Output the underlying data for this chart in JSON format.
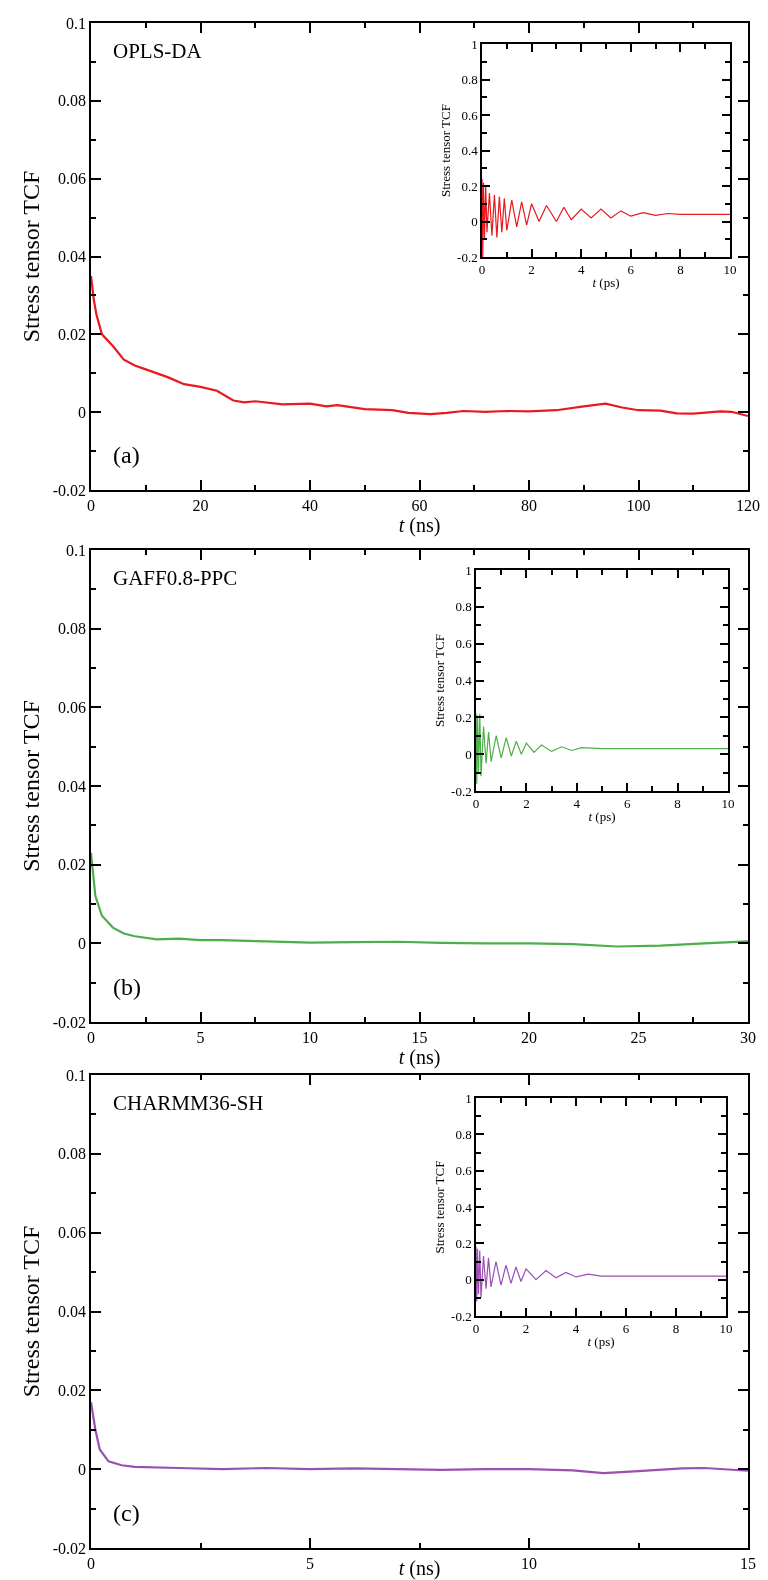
{
  "chart_data": [
    {
      "type": "line",
      "xlabel": "t (ns)",
      "ylabel": "Stress tensor TCF",
      "annotations": [
        "OPLS-DA",
        "(a)"
      ],
      "xlim": [
        0,
        120
      ],
      "xticks": [
        0,
        20,
        40,
        60,
        80,
        100,
        120
      ],
      "ylim": [
        -0.02,
        0.1
      ],
      "yticks": [
        -0.02,
        0,
        0.02,
        0.04,
        0.06,
        0.08,
        0.1
      ],
      "series": [
        {
          "color": "#e8191f",
          "x": [
            0,
            0.5,
            1,
            2,
            4,
            6,
            8,
            10,
            14,
            17,
            20,
            23,
            26,
            28,
            30,
            35,
            40,
            43,
            45,
            50,
            55,
            58,
            62,
            65,
            68,
            72,
            76,
            80,
            85,
            90,
            94,
            97,
            100,
            104,
            107,
            110,
            115,
            117,
            120
          ],
          "values": [
            0.035,
            0.029,
            0.025,
            0.02,
            0.017,
            0.0135,
            0.012,
            0.011,
            0.009,
            0.0072,
            0.0065,
            0.0055,
            0.003,
            0.0025,
            0.0028,
            0.002,
            0.0022,
            0.0015,
            0.0018,
            0.0008,
            0.0005,
            -0.0002,
            -0.0005,
            -0.0002,
            0.0003,
            0.0001,
            0.0003,
            0.0002,
            0.0005,
            0.0015,
            0.0022,
            0.0012,
            0.0005,
            0.0004,
            -0.0003,
            -0.0004,
            0.0002,
            0.0001,
            -0.001
          ]
        }
      ]
    },
    {
      "type": "line",
      "xlabel": "t (ps)",
      "ylabel": "Stress tensor TCF",
      "xlim": [
        0,
        10
      ],
      "xticks": [
        0,
        2,
        4,
        6,
        8,
        10
      ],
      "ylim": [
        -0.2,
        1
      ],
      "yticks": [
        -0.2,
        0,
        0.2,
        0.4,
        0.6,
        0.8,
        1
      ],
      "series": [
        {
          "color": "#e8191f",
          "x": [
            0,
            0.03,
            0.06,
            0.1,
            0.15,
            0.2,
            0.3,
            0.4,
            0.5,
            0.6,
            0.7,
            0.8,
            0.9,
            1.0,
            1.2,
            1.4,
            1.6,
            1.8,
            2.0,
            2.3,
            2.6,
            3.0,
            3.3,
            3.6,
            4.0,
            4.4,
            4.8,
            5.2,
            5.6,
            6.0,
            6.5,
            7.0,
            7.5,
            8.0,
            9.0,
            10.0
          ],
          "values": [
            0.24,
            -0.2,
            0.22,
            -0.1,
            0.2,
            -0.06,
            0.16,
            -0.08,
            0.15,
            -0.09,
            0.14,
            -0.06,
            0.13,
            -0.05,
            0.12,
            -0.03,
            0.11,
            -0.02,
            0.1,
            0.0,
            0.09,
            0.0,
            0.08,
            0.01,
            0.07,
            0.02,
            0.07,
            0.02,
            0.06,
            0.03,
            0.05,
            0.035,
            0.045,
            0.04,
            0.04,
            0.04
          ]
        }
      ]
    },
    {
      "type": "line",
      "xlabel": "t (ns)",
      "ylabel": "Stress tensor TCF",
      "annotations": [
        "GAFF0.8-PPC",
        "(b)"
      ],
      "xlim": [
        0,
        30
      ],
      "xticks": [
        0,
        5,
        10,
        15,
        20,
        25,
        30
      ],
      "ylim": [
        -0.02,
        0.1
      ],
      "yticks": [
        -0.02,
        0,
        0.02,
        0.04,
        0.06,
        0.08,
        0.1
      ],
      "series": [
        {
          "color": "#4daf4a",
          "x": [
            0,
            0.2,
            0.5,
            1,
            1.5,
            2,
            3,
            4,
            5,
            6,
            8,
            10,
            12,
            14,
            16,
            18,
            20,
            22,
            24,
            26,
            28,
            30
          ],
          "values": [
            0.023,
            0.012,
            0.007,
            0.004,
            0.0025,
            0.0018,
            0.001,
            0.0012,
            0.0008,
            0.0008,
            0.0005,
            0.0002,
            0.0003,
            0.0004,
            0.0001,
            0.0,
            0.0,
            -0.0002,
            -0.0008,
            -0.0006,
            0.0,
            0.0005
          ]
        }
      ]
    },
    {
      "type": "line",
      "xlabel": "t (ps)",
      "ylabel": "Stress tensor TCF",
      "xlim": [
        0,
        10
      ],
      "xticks": [
        0,
        2,
        4,
        6,
        8,
        10
      ],
      "ylim": [
        -0.2,
        1
      ],
      "yticks": [
        -0.2,
        0,
        0.2,
        0.4,
        0.6,
        0.8,
        1
      ],
      "series": [
        {
          "color": "#4daf4a",
          "x": [
            0,
            0.03,
            0.06,
            0.1,
            0.15,
            0.2,
            0.3,
            0.4,
            0.5,
            0.6,
            0.8,
            1.0,
            1.2,
            1.4,
            1.6,
            1.8,
            2.0,
            2.3,
            2.6,
            3.0,
            3.4,
            3.8,
            4.2,
            5.0,
            6.0,
            8.0,
            10.0
          ],
          "values": [
            0.22,
            -0.16,
            0.21,
            -0.1,
            0.22,
            -0.12,
            0.15,
            -0.05,
            0.12,
            -0.04,
            0.1,
            -0.02,
            0.09,
            -0.01,
            0.07,
            0.0,
            0.06,
            0.01,
            0.05,
            0.015,
            0.04,
            0.02,
            0.035,
            0.03,
            0.03,
            0.03,
            0.03
          ]
        }
      ]
    },
    {
      "type": "line",
      "xlabel": "t (ns)",
      "ylabel": "Stress tensor TCF",
      "annotations": [
        "CHARMM36-SH",
        "(c)"
      ],
      "xlim": [
        0,
        15
      ],
      "xticks": [
        0,
        5,
        10,
        15
      ],
      "ylim": [
        -0.02,
        0.1
      ],
      "yticks": [
        -0.02,
        0,
        0.02,
        0.04,
        0.06,
        0.08,
        0.1
      ],
      "series": [
        {
          "color": "#9b4fb0",
          "x": [
            0,
            0.1,
            0.2,
            0.4,
            0.7,
            1,
            2,
            3,
            4,
            5,
            6,
            7,
            8,
            9,
            10,
            11,
            11.7,
            12.5,
            13.5,
            14,
            15
          ],
          "values": [
            0.017,
            0.01,
            0.005,
            0.002,
            0.001,
            0.0006,
            0.0003,
            0.0,
            0.0003,
            0.0,
            0.0002,
            0.0,
            -0.0002,
            0.0,
            0.0,
            -0.0003,
            -0.001,
            -0.0005,
            0.0002,
            0.0003,
            -0.0004
          ]
        }
      ]
    },
    {
      "type": "line",
      "xlabel": "t (ps)",
      "ylabel": "Stress tensor TCF",
      "xlim": [
        0,
        10
      ],
      "xticks": [
        0,
        2,
        4,
        6,
        8,
        10
      ],
      "ylim": [
        -0.2,
        1
      ],
      "yticks": [
        -0.2,
        0,
        0.2,
        0.4,
        0.6,
        0.8,
        1
      ],
      "series": [
        {
          "color": "#9b4fb0",
          "x": [
            0,
            0.03,
            0.06,
            0.1,
            0.15,
            0.2,
            0.3,
            0.4,
            0.5,
            0.6,
            0.8,
            1.0,
            1.2,
            1.4,
            1.6,
            1.8,
            2.0,
            2.4,
            2.8,
            3.2,
            3.6,
            4.0,
            4.5,
            5.0,
            6.0,
            8.0,
            10.0
          ],
          "values": [
            0.18,
            -0.12,
            0.17,
            -0.08,
            0.16,
            -0.1,
            0.13,
            -0.05,
            0.12,
            -0.04,
            0.1,
            -0.03,
            0.08,
            -0.02,
            0.07,
            -0.01,
            0.06,
            0.0,
            0.05,
            0.01,
            0.04,
            0.015,
            0.03,
            0.02,
            0.02,
            0.02,
            0.02
          ]
        }
      ]
    }
  ]
}
